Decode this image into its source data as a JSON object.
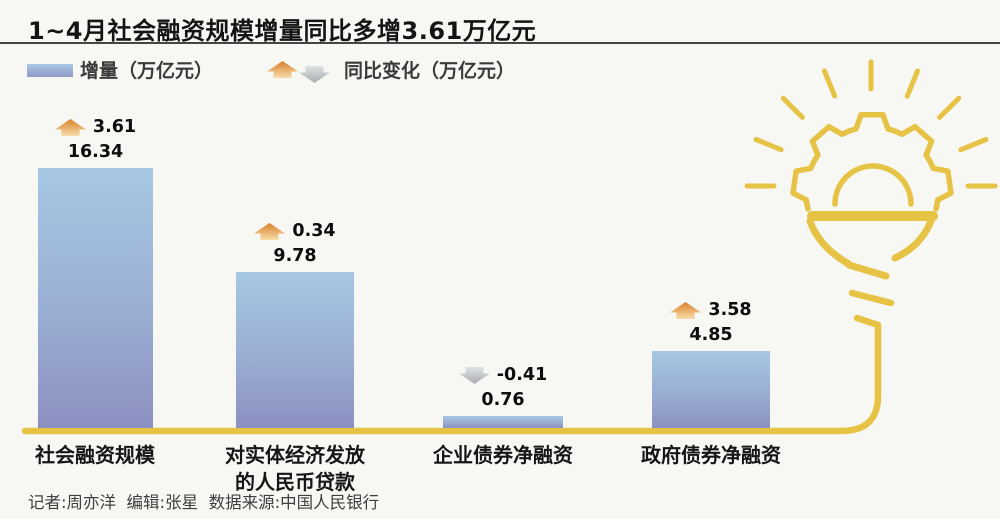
{
  "title": "1~4月社会融资规模增量同比多增3.61万亿元",
  "legend": {
    "increment_label": "增量（万亿元）",
    "change_label": "同比变化（万亿元）"
  },
  "bars": [
    {
      "category_line1": "社会融资规模",
      "category_line2": "",
      "value": "16.34",
      "change": "3.61",
      "direction": "up"
    },
    {
      "category_line1": "对实体经济发放",
      "category_line2": "的人民币贷款",
      "value": "9.78",
      "change": "0.34",
      "direction": "up"
    },
    {
      "category_line1": "企业债券净融资",
      "category_line2": "",
      "value": "0.76",
      "change": "-0.41",
      "direction": "down"
    },
    {
      "category_line1": "政府债券净融资",
      "category_line2": "",
      "value": "4.85",
      "change": "3.58",
      "direction": "up"
    }
  ],
  "footer": "记者:周亦洋  编辑:张星  数据来源:中国人民银行",
  "colors": {
    "background": "#f7f7f4",
    "bar_top": "#a6c7e3",
    "bar_bottom": "#8c90c0",
    "axis_gold": "#e7c345",
    "up_arrow_top": "#d87f2a",
    "up_arrow_bottom": "#f8dca8",
    "down_arrow_top": "#dfe2e4",
    "down_arrow_bottom": "#a9adb0"
  },
  "icon": {
    "name": "lightbulb-gear-idea-icon"
  },
  "chart_data": {
    "type": "bar",
    "title": "1~4月社会融资规模增量同比多增3.61万亿元",
    "categories": [
      "社会融资规模",
      "对实体经济发放的人民币贷款",
      "企业债券净融资",
      "政府债券净融资"
    ],
    "series": [
      {
        "name": "增量（万亿元）",
        "values": [
          16.34,
          9.78,
          0.76,
          4.85
        ]
      },
      {
        "name": "同比变化（万亿元）",
        "values": [
          3.61,
          0.34,
          -0.41,
          3.58
        ]
      }
    ],
    "xlabel": "",
    "ylabel": "万亿元",
    "ylim": [
      0,
      17
    ],
    "grid": false,
    "legend_position": "top-left",
    "data_labels": true,
    "source": "中国人民银行"
  }
}
